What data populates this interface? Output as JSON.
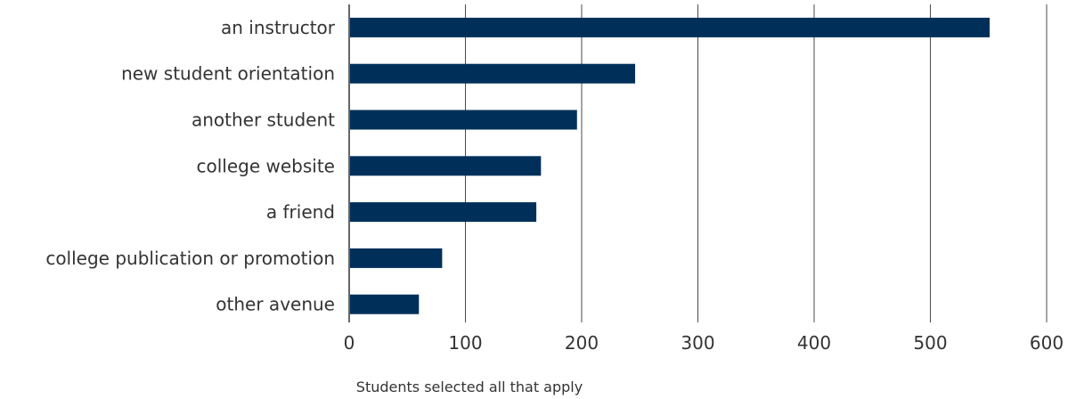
{
  "chart_data": {
    "type": "bar",
    "orientation": "horizontal",
    "categories": [
      "an instructor",
      "new student orientation",
      "another student",
      "college website",
      "a friend",
      "college publication or promotion",
      "other avenue"
    ],
    "values": [
      551,
      246,
      196,
      165,
      161,
      80,
      60
    ],
    "xlabel": "Students selected all that apply",
    "ylabel": "",
    "xlim": [
      0,
      600
    ],
    "xticks": [
      "0",
      "100",
      "200",
      "300",
      "400",
      "500",
      "600"
    ],
    "grid": "vertical",
    "legend": "none",
    "bar_color": "#00305a"
  }
}
